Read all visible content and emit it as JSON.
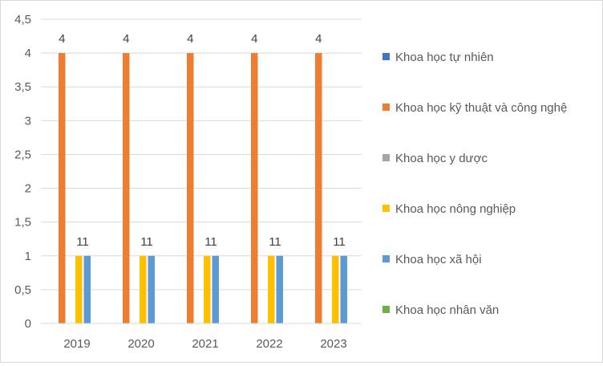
{
  "chart_data": {
    "type": "bar",
    "categories": [
      "2019",
      "2020",
      "2021",
      "2022",
      "2023"
    ],
    "series": [
      {
        "name": "Khoa học tự nhiên",
        "color": "#4472C4",
        "values": [
          0,
          0,
          0,
          0,
          0
        ]
      },
      {
        "name": "Khoa học kỹ thuật và công nghệ",
        "color": "#ED7D31",
        "values": [
          4,
          4,
          4,
          4,
          4
        ],
        "data_labels": [
          "4",
          "4",
          "4",
          "4",
          "4"
        ]
      },
      {
        "name": "Khoa học y dược",
        "color": "#A5A5A5",
        "values": [
          0,
          0,
          0,
          0,
          0
        ]
      },
      {
        "name": "Khoa học nông nghiệp",
        "color": "#FFC000",
        "values": [
          1,
          1,
          1,
          1,
          1
        ]
      },
      {
        "name": "Khoa học xã hội",
        "color": "#5B9BD5",
        "values": [
          1,
          1,
          1,
          1,
          1
        ]
      },
      {
        "name": "Khoa học nhân văn",
        "color": "#70AD47",
        "values": [
          0,
          0,
          0,
          0,
          0
        ]
      }
    ],
    "group_labels": [
      "11",
      "11",
      "11",
      "11",
      "11"
    ],
    "y_ticks": [
      "0",
      "0,5",
      "1",
      "1,5",
      "2",
      "2,5",
      "3",
      "3,5",
      "4",
      "4,5"
    ],
    "ylim": [
      0,
      4.5
    ],
    "grid": true,
    "legend_position": "right",
    "title": "",
    "xlabel": "",
    "ylabel": ""
  }
}
